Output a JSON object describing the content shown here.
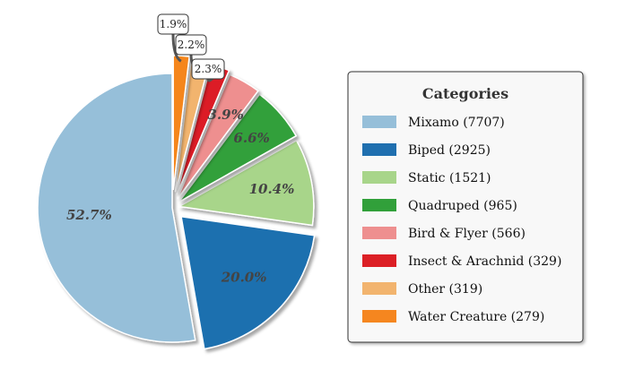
{
  "chart_data": {
    "type": "pie",
    "legend_title": "Categories",
    "legend_position": "right",
    "slices": [
      {
        "label": "Mixamo (7707)",
        "value": 7707,
        "pct": "52.7%",
        "color": "#96bfd9"
      },
      {
        "label": "Biped (2925)",
        "value": 2925,
        "pct": "20.0%",
        "color": "#1f6faf"
      },
      {
        "label": "Static (1521)",
        "value": 1521,
        "pct": "10.4%",
        "color": "#a8d58a"
      },
      {
        "label": "Quadruped (965)",
        "value": 965,
        "pct": "6.6%",
        "color": "#31a03a"
      },
      {
        "label": "Bird & Flyer (566)",
        "value": 566,
        "pct": "3.9%",
        "color": "#ee8f8f"
      },
      {
        "label": "Insect & Arachnid (329)",
        "value": 329,
        "pct": "2.3%",
        "color": "#dc1f25"
      },
      {
        "label": "Other (319)",
        "value": 319,
        "pct": "2.2%",
        "color": "#f2b46e"
      },
      {
        "label": "Water Creature (279)",
        "value": 279,
        "pct": "1.9%",
        "color": "#f5861f"
      }
    ]
  }
}
